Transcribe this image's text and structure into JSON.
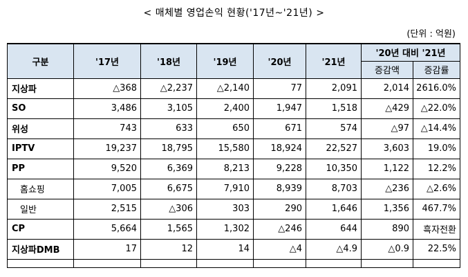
{
  "title": "< 매체별 영업손익 현황('17년~'21년) >",
  "unit": "(단위 : 억원)",
  "table": {
    "header": {
      "category": "구분",
      "years": [
        "'17년",
        "'18년",
        "'19년",
        "'20년",
        "'21년"
      ],
      "group": "'20년 대비 '21년",
      "sub": [
        "증감액",
        "증감률"
      ]
    },
    "rows": [
      {
        "category": "지상파",
        "values": [
          "△368",
          "△2,237",
          "△2,140",
          "77",
          "2,091",
          "2,014",
          "2616.0%"
        ]
      },
      {
        "category": "SO",
        "values": [
          "3,486",
          "3,105",
          "2,400",
          "1,947",
          "1,518",
          "△429",
          "△22.0%"
        ]
      },
      {
        "category": "위성",
        "values": [
          "743",
          "633",
          "650",
          "671",
          "574",
          "△97",
          "△14.4%"
        ]
      },
      {
        "category": "IPTV",
        "values": [
          "19,237",
          "18,795",
          "15,580",
          "18,924",
          "22,527",
          "3,603",
          "19.0%"
        ]
      },
      {
        "category": "PP",
        "values": [
          "9,520",
          "6,369",
          "8,213",
          "9,228",
          "10,350",
          "1,122",
          "12.2%"
        ]
      },
      {
        "category": "홈쇼핑",
        "values": [
          "7,005",
          "6,675",
          "7,910",
          "8,939",
          "8,703",
          "△236",
          "△2.6%"
        ]
      },
      {
        "category": "일반",
        "values": [
          "2,515",
          "△306",
          "303",
          "290",
          "1,646",
          "1,356",
          "467.7%"
        ]
      },
      {
        "category": "CP",
        "values": [
          "5,664",
          "1,565",
          "1,302",
          "△246",
          "644",
          "890",
          "흑자전환"
        ]
      },
      {
        "category": "지상파DMB",
        "values": [
          "17",
          "12",
          "14",
          "△4",
          "△4.9",
          "△0.9",
          "22.5%"
        ]
      }
    ]
  }
}
